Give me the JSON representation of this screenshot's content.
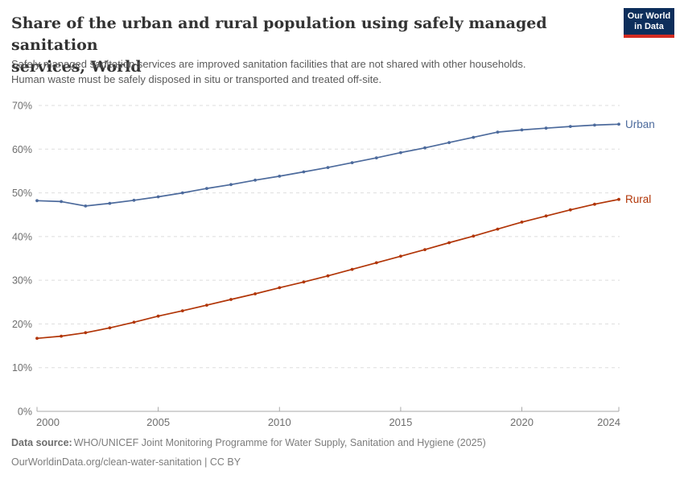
{
  "header": {
    "title": "Share of the urban and rural population using safely managed sanitation\nservices, World",
    "subtitle": "Safely managed sanitation services are improved sanitation facilities that are not shared with other households.\nHuman waste must be safely disposed in situ or transported and treated off-site.",
    "logo": {
      "line1": "Our World",
      "line2": "in Data",
      "bg_color": "#0d2e5b",
      "accent_color": "#d42b21"
    }
  },
  "chart_data": {
    "type": "line",
    "title": "Share of the urban and rural population using safely managed sanitation services, World",
    "x": [
      2000,
      2001,
      2002,
      2003,
      2004,
      2005,
      2006,
      2007,
      2008,
      2009,
      2010,
      2011,
      2012,
      2013,
      2014,
      2015,
      2016,
      2017,
      2018,
      2019,
      2020,
      2021,
      2022,
      2023,
      2024
    ],
    "series": [
      {
        "name": "Urban",
        "color": "#4C6A9C",
        "values": [
          48.2,
          48.0,
          47.0,
          47.6,
          48.3,
          49.1,
          50.0,
          51.0,
          51.9,
          52.9,
          53.8,
          54.8,
          55.8,
          56.9,
          58.0,
          59.2,
          60.3,
          61.5,
          62.7,
          63.9,
          64.4,
          64.8,
          65.2,
          65.5,
          65.7
        ]
      },
      {
        "name": "Rural",
        "color": "#B13507",
        "values": [
          16.7,
          17.2,
          18.0,
          19.1,
          20.4,
          21.8,
          23.0,
          24.3,
          25.6,
          26.9,
          28.3,
          29.6,
          31.0,
          32.5,
          34.0,
          35.5,
          37.0,
          38.6,
          40.1,
          41.7,
          43.3,
          44.7,
          46.1,
          47.4,
          48.5
        ]
      }
    ],
    "ylim": [
      0,
      70
    ],
    "yticks": [
      0,
      10,
      20,
      30,
      40,
      50,
      60,
      70
    ],
    "ytick_suffix": "%",
    "xticks": [
      2000,
      2005,
      2010,
      2015,
      2020,
      2024
    ],
    "grid": "horizontal-dashed",
    "grid_color": "#dddddd",
    "axis_color": "#a9a9a9",
    "tick_label_color": "#6e6e6e",
    "legend": "end-of-line-labels"
  },
  "footer": {
    "source_label": "Data source:",
    "source_text": "WHO/UNICEF Joint Monitoring Programme for Water Supply, Sanitation and Hygiene (2025)",
    "link_line": "OurWorldinData.org/clean-water-sanitation | CC BY"
  }
}
